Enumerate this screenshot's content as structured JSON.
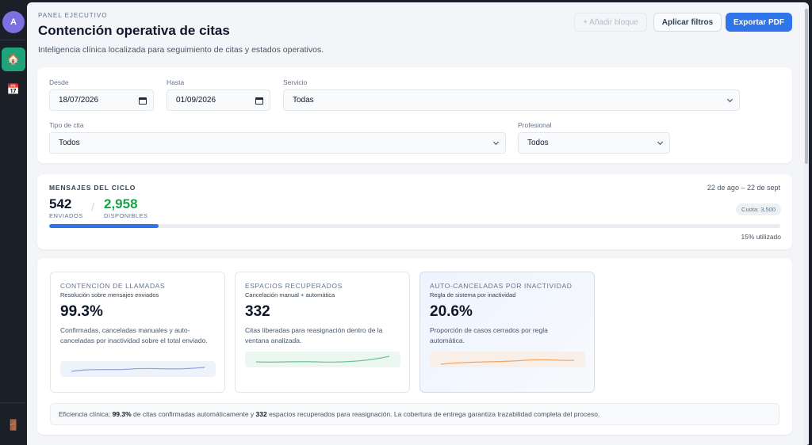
{
  "sidebar": {
    "avatar_initial": "A",
    "items": [
      {
        "name": "home",
        "glyph": "🏠"
      },
      {
        "name": "calendar",
        "glyph": "📅"
      }
    ],
    "exit_glyph": "🚪"
  },
  "header": {
    "eyebrow": "PANEL EJECUTIVO",
    "title": "Contención operativa de citas",
    "subtitle": "Inteligencia clínica localizada para seguimiento de citas y estados operativos.",
    "add_block_label": "+ Añadir bloque",
    "apply_filters_label": "Aplicar filtros",
    "export_label": "Exportar PDF"
  },
  "filters": {
    "from": {
      "label": "Desde",
      "value": "18/07/2026"
    },
    "to": {
      "label": "Hasta",
      "value": "01/09/2026"
    },
    "service": {
      "label": "Servicio",
      "value": "Todas"
    },
    "type": {
      "label": "Tipo de cita",
      "value": "Todos"
    },
    "professional": {
      "label": "Profesional",
      "value": "Todos"
    }
  },
  "messages": {
    "title": "MENSAJES DEL CICLO",
    "range": "22 de ago – 22 de sept",
    "sent_value": "542",
    "sent_label": "ENVIADOS",
    "separator": "/",
    "available_value": "2,958",
    "available_label": "DISPONIBLES",
    "quota": "Cuota: 3,500",
    "used_fraction": 0.15,
    "used_note": "15% utilizado"
  },
  "kpis": [
    {
      "title": "CONTENCIÓN DE LLAMADAS",
      "subtitle": "Resolución sobre mensajes enviados",
      "value": "99.3%",
      "description": "Confirmadas, canceladas manuales y auto-canceladas por inactividad sobre el total enviado.",
      "accent": "#8fa6dd"
    },
    {
      "title": "ESPACIOS RECUPERADOS",
      "subtitle": "Cancelación manual + automática",
      "value": "332",
      "description": "Citas liberadas para reasignación dentro de la ventana analizada.",
      "accent": "#6cc39b"
    },
    {
      "title": "AUTO-CANCELADAS POR INACTIVIDAD",
      "subtitle": "Regla de sistema por inactividad",
      "value": "20.6%",
      "description": "Proporción de casos cerrados por regla automática.",
      "accent": "#f0a66a"
    }
  ],
  "summary": {
    "prefix": "Eficiencia clínica: ",
    "value1": "99.3%",
    "middle": " de citas confirmadas automáticamente y ",
    "value2": "332",
    "suffix": " espacios recuperados para reasignación. La cobertura de entrega garantiza trazabilidad completa del proceso."
  },
  "colors": {
    "primary": "#2f74e8",
    "success": "#16a34a",
    "sidebar_active": "#1fa37a",
    "avatar": "#7c6fe0"
  }
}
